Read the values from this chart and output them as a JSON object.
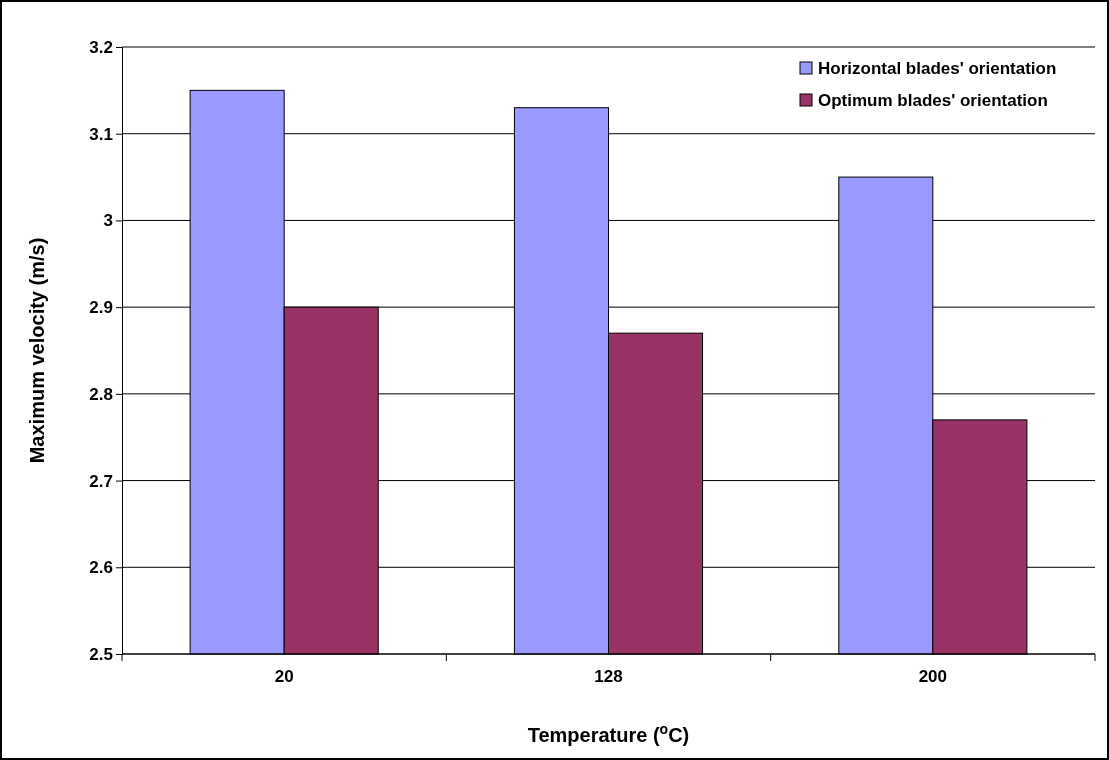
{
  "chart_data": {
    "type": "bar",
    "xlabel": "Temperature ($^{o}$C)",
    "ylabel": "Maximum velocity (m/s)",
    "categories": [
      "20",
      "128",
      "200"
    ],
    "series": [
      {
        "name": "Horizontal blades' orientation",
        "color": "#9999ff",
        "values": [
          3.15,
          3.13,
          3.05
        ]
      },
      {
        "name": "Optimum blades' orientation",
        "color": "#993366",
        "values": [
          2.9,
          2.87,
          2.77
        ]
      }
    ],
    "ylim": [
      2.5,
      3.2
    ],
    "yticks": [
      {
        "value": 2.5,
        "label": "2.5"
      },
      {
        "value": 2.6,
        "label": "2.6"
      },
      {
        "value": 2.7,
        "label": "2.7"
      },
      {
        "value": 2.8,
        "label": "2.8"
      },
      {
        "value": 2.9,
        "label": "2.9"
      },
      {
        "value": 3,
        "label": "3"
      },
      {
        "value": 3.1,
        "label": "3.1"
      },
      {
        "value": 3.2,
        "label": "3.2"
      }
    ],
    "grid": "y",
    "legend": "top right"
  }
}
